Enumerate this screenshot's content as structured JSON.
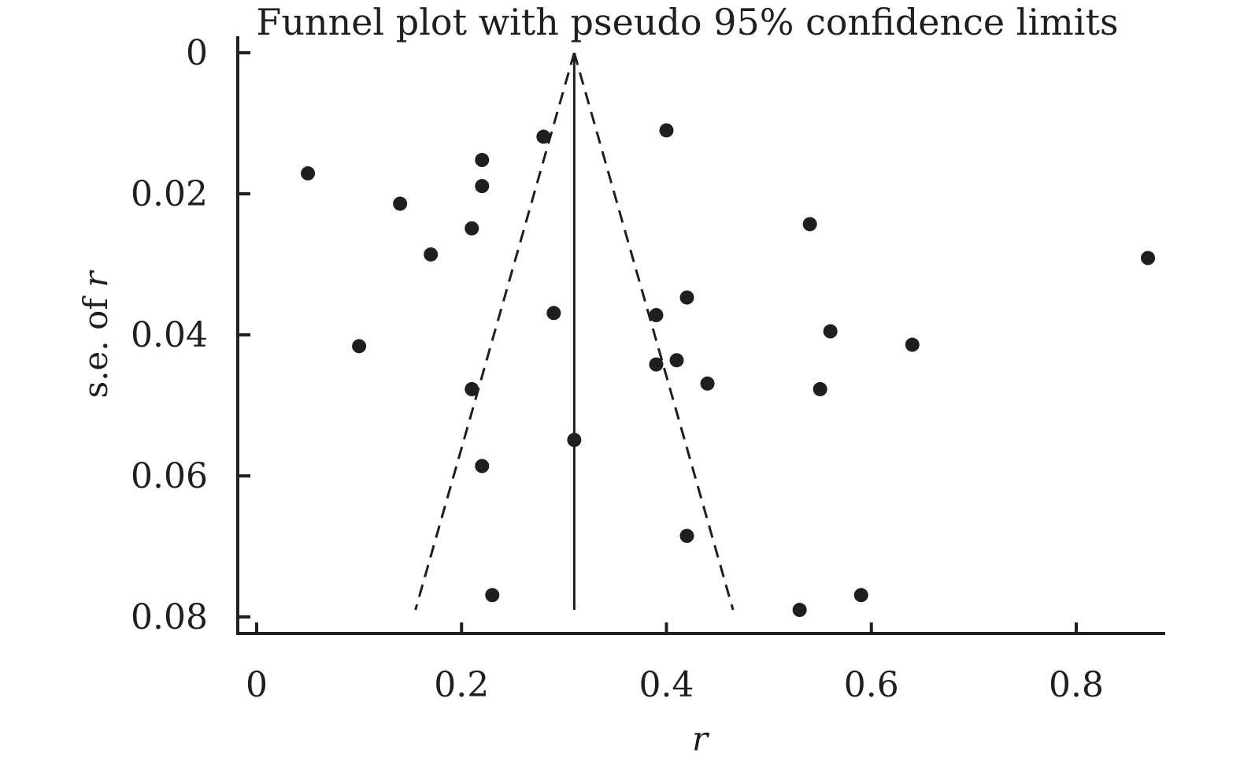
{
  "chart_data": {
    "type": "scatter",
    "title": "Funnel plot with pseudo 95% confidence limits",
    "xlabel": "r",
    "ylabel_prefix": "s.e. of ",
    "ylabel_var": "r",
    "xlim": [
      -0.02,
      0.885
    ],
    "ylim": [
      0,
      0.0825
    ],
    "y_inverted": true,
    "x_ticks": [
      {
        "value": 0,
        "label": "0"
      },
      {
        "value": 0.2,
        "label": "0.2"
      },
      {
        "value": 0.4,
        "label": "0.4"
      },
      {
        "value": 0.6,
        "label": "0.6"
      },
      {
        "value": 0.8,
        "label": "0.8"
      }
    ],
    "y_ticks": [
      {
        "value": 0,
        "label": "0"
      },
      {
        "value": 0.02,
        "label": "0.02"
      },
      {
        "value": 0.04,
        "label": "0.04"
      },
      {
        "value": 0.06,
        "label": "0.06"
      },
      {
        "value": 0.08,
        "label": "0.08"
      }
    ],
    "pooled_estimate": 0.31,
    "funnel": {
      "apex": {
        "x": 0.31,
        "y": 0
      },
      "lower_left": {
        "x": 0.155,
        "y": 0.079
      },
      "lower_right": {
        "x": 0.465,
        "y": 0.079
      }
    },
    "grid": false,
    "legend": "none",
    "points": [
      {
        "x": 0.05,
        "y": 0.0171
      },
      {
        "x": 0.1,
        "y": 0.0416
      },
      {
        "x": 0.14,
        "y": 0.0214
      },
      {
        "x": 0.17,
        "y": 0.0286
      },
      {
        "x": 0.21,
        "y": 0.0249
      },
      {
        "x": 0.22,
        "y": 0.0152
      },
      {
        "x": 0.22,
        "y": 0.0189
      },
      {
        "x": 0.28,
        "y": 0.0119
      },
      {
        "x": 0.4,
        "y": 0.011
      },
      {
        "x": 0.54,
        "y": 0.0243
      },
      {
        "x": 0.87,
        "y": 0.0291
      },
      {
        "x": 0.42,
        "y": 0.0347
      },
      {
        "x": 0.39,
        "y": 0.0372
      },
      {
        "x": 0.29,
        "y": 0.0369
      },
      {
        "x": 0.56,
        "y": 0.0395
      },
      {
        "x": 0.64,
        "y": 0.0414
      },
      {
        "x": 0.39,
        "y": 0.0442
      },
      {
        "x": 0.41,
        "y": 0.0436
      },
      {
        "x": 0.44,
        "y": 0.0469
      },
      {
        "x": 0.21,
        "y": 0.0477
      },
      {
        "x": 0.55,
        "y": 0.0477
      },
      {
        "x": 0.31,
        "y": 0.0549
      },
      {
        "x": 0.22,
        "y": 0.0586
      },
      {
        "x": 0.42,
        "y": 0.0685
      },
      {
        "x": 0.23,
        "y": 0.0769
      },
      {
        "x": 0.59,
        "y": 0.0769
      },
      {
        "x": 0.53,
        "y": 0.079
      }
    ],
    "colors": {
      "ink": "#1f1f1f",
      "background": "#ffffff"
    }
  }
}
